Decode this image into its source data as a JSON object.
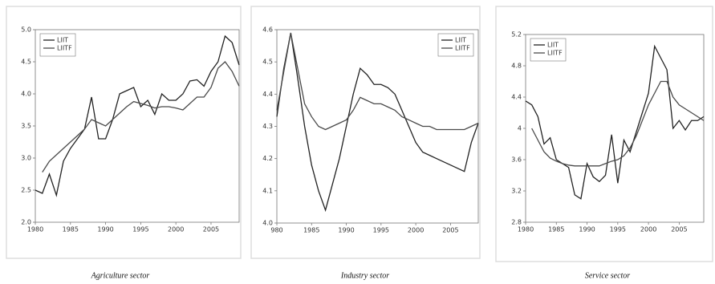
{
  "chart_data": [
    {
      "type": "line",
      "caption": "Agriculture sector",
      "legend": "upper left",
      "grid": false,
      "x": [
        1980,
        1981,
        1982,
        1983,
        1984,
        1985,
        1986,
        1987,
        1988,
        1989,
        1990,
        1991,
        1992,
        1993,
        1994,
        1995,
        1996,
        1997,
        1998,
        1999,
        2000,
        2001,
        2002,
        2003,
        2004,
        2005,
        2006,
        2007,
        2008,
        2009
      ],
      "xlim": [
        1980,
        2009
      ],
      "xticks": [
        1980,
        1985,
        1990,
        1995,
        2000,
        2005
      ],
      "ylim": [
        2,
        5
      ],
      "yticks": [
        {
          "value": 2,
          "label": "2.0"
        },
        2.5,
        {
          "value": 3,
          "label": "3.0"
        },
        3.5,
        {
          "value": 4,
          "label": "4.0"
        },
        4.5,
        {
          "value": 5,
          "label": "5.0"
        }
      ],
      "series": [
        {
          "name": "LIIT",
          "color": "#222222",
          "values": [
            2.5,
            2.45,
            2.75,
            2.42,
            2.95,
            3.15,
            3.3,
            3.45,
            3.95,
            3.3,
            3.3,
            3.6,
            4.0,
            4.05,
            4.1,
            3.8,
            3.9,
            3.68,
            4.0,
            3.9,
            3.9,
            4.0,
            4.2,
            4.22,
            4.12,
            4.35,
            4.5,
            4.9,
            4.8,
            4.45
          ]
        },
        {
          "name": "LIITF",
          "color": "#4a4a4a",
          "values": [
            null,
            2.78,
            2.95,
            3.05,
            3.15,
            3.25,
            3.35,
            3.45,
            3.6,
            3.55,
            3.5,
            3.6,
            3.7,
            3.8,
            3.88,
            3.85,
            3.82,
            3.78,
            3.8,
            3.8,
            3.78,
            3.75,
            3.85,
            3.95,
            3.95,
            4.1,
            4.4,
            4.5,
            4.35,
            4.12
          ]
        }
      ]
    },
    {
      "type": "line",
      "caption": "Industry sector",
      "legend": "upper right",
      "grid": false,
      "x": [
        1980,
        1981,
        1982,
        1983,
        1984,
        1985,
        1986,
        1987,
        1988,
        1989,
        1990,
        1991,
        1992,
        1993,
        1994,
        1995,
        1996,
        1997,
        1998,
        1999,
        2000,
        2001,
        2002,
        2003,
        2004,
        2005,
        2006,
        2007,
        2008,
        2009
      ],
      "xlim": [
        1980,
        2009
      ],
      "xticks": [
        {
          "value": 1980,
          "label": "980"
        },
        1985,
        1990,
        1995,
        2000,
        2005
      ],
      "ylim": [
        4,
        4.6
      ],
      "yticks": [
        {
          "value": 4,
          "label": "4.0"
        },
        4.1,
        4.2,
        4.3,
        4.4,
        4.5,
        4.6
      ],
      "series": [
        {
          "name": "LIIT",
          "color": "#222222",
          "values": [
            4.33,
            4.48,
            4.59,
            4.45,
            4.3,
            4.18,
            4.1,
            4.04,
            4.12,
            4.2,
            4.3,
            4.4,
            4.48,
            4.46,
            4.43,
            4.43,
            4.42,
            4.4,
            4.35,
            4.3,
            4.25,
            4.22,
            4.21,
            4.2,
            4.19,
            4.18,
            4.17,
            4.16,
            4.25,
            4.31
          ]
        },
        {
          "name": "LIITF",
          "color": "#4a4a4a",
          "values": [
            4.35,
            4.47,
            4.59,
            4.48,
            4.37,
            4.33,
            4.3,
            4.29,
            4.3,
            4.31,
            4.32,
            4.35,
            4.39,
            4.38,
            4.37,
            4.37,
            4.36,
            4.35,
            4.33,
            4.32,
            4.31,
            4.3,
            4.3,
            4.29,
            4.29,
            4.29,
            4.29,
            4.29,
            4.3,
            4.31
          ]
        }
      ]
    },
    {
      "type": "line",
      "caption": "Service sector",
      "legend": "upper left",
      "grid": false,
      "x": [
        1980,
        1981,
        1982,
        1983,
        1984,
        1985,
        1986,
        1987,
        1988,
        1989,
        1990,
        1991,
        1992,
        1993,
        1994,
        1995,
        1996,
        1997,
        1998,
        1999,
        2000,
        2001,
        2002,
        2003,
        2004,
        2005,
        2006,
        2007,
        2008,
        2009
      ],
      "xlim": [
        1980,
        2009
      ],
      "xticks": [
        1980,
        1985,
        1990,
        1995,
        2000,
        2005
      ],
      "ylim": [
        2.8,
        5.2
      ],
      "yticks": [
        2.8,
        3.2,
        3.6,
        4.0,
        4.4,
        4.8,
        5.2
      ],
      "series": [
        {
          "name": "LIIT",
          "color": "#222222",
          "values": [
            4.35,
            4.3,
            4.15,
            3.8,
            3.88,
            3.6,
            3.55,
            3.5,
            3.15,
            3.1,
            3.55,
            3.38,
            3.32,
            3.4,
            3.92,
            3.3,
            3.85,
            3.7,
            3.95,
            4.2,
            4.45,
            5.05,
            4.9,
            4.75,
            4.0,
            4.1,
            3.98,
            4.1,
            4.1,
            4.15
          ]
        },
        {
          "name": "LIITF",
          "color": "#4a4a4a",
          "values": [
            null,
            4.0,
            3.85,
            3.7,
            3.62,
            3.58,
            3.55,
            3.53,
            3.52,
            3.52,
            3.52,
            3.52,
            3.52,
            3.55,
            3.58,
            3.6,
            3.65,
            3.75,
            3.9,
            4.1,
            4.3,
            4.45,
            4.6,
            4.6,
            4.4,
            4.3,
            4.25,
            4.2,
            4.15,
            4.1
          ]
        }
      ]
    }
  ]
}
